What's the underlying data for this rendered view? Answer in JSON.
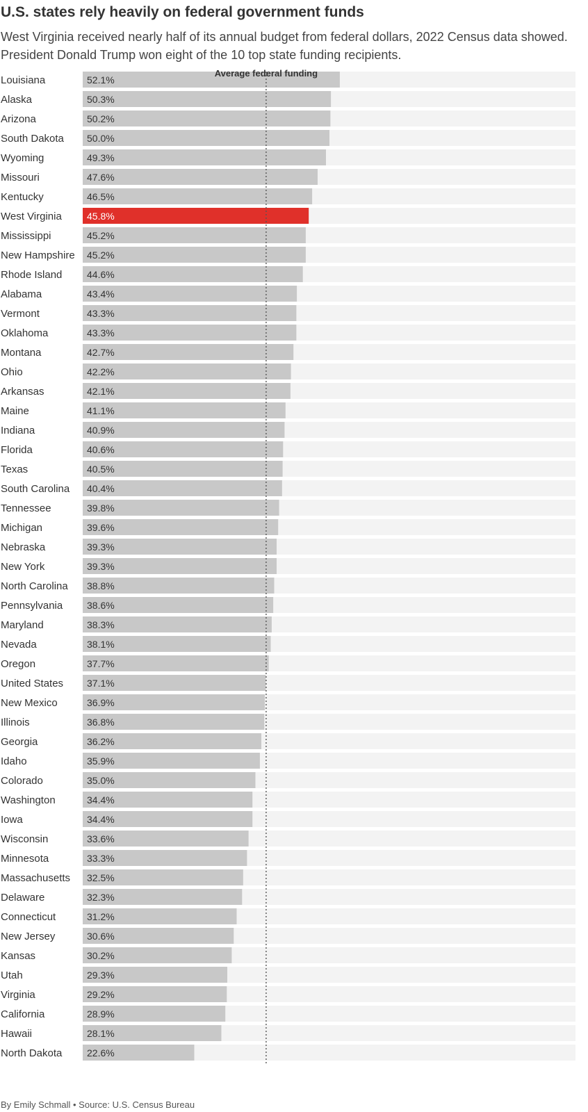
{
  "title": "U.S. states rely heavily on federal government funds",
  "subtitle": "West Virginia received nearly half of its annual budget from federal dollars, 2022 Census data showed. President Donald Trump won eight of the 10 top state funding recipients.",
  "footer": "By Emily Schmall • Source: U.S. Census Bureau",
  "colors": {
    "bar": "#c8c8c8",
    "highlight": "#e0302a",
    "track": "#f3f3f3",
    "average_line": "#555555"
  },
  "chart_data": {
    "type": "bar",
    "orientation": "horizontal",
    "highlight": "West Virginia",
    "average_label": "Average federal funding",
    "average_value": 37.1,
    "xlim": [
      0,
      100
    ],
    "categories": [
      "Louisiana",
      "Alaska",
      "Arizona",
      "South Dakota",
      "Wyoming",
      "Missouri",
      "Kentucky",
      "West Virginia",
      "Mississippi",
      "New Hampshire",
      "Rhode Island",
      "Alabama",
      "Vermont",
      "Oklahoma",
      "Montana",
      "Ohio",
      "Arkansas",
      "Maine",
      "Indiana",
      "Florida",
      "Texas",
      "South Carolina",
      "Tennessee",
      "Michigan",
      "Nebraska",
      "New York",
      "North Carolina",
      "Pennsylvania",
      "Maryland",
      "Nevada",
      "Oregon",
      "United States",
      "New Mexico",
      "Illinois",
      "Georgia",
      "Idaho",
      "Colorado",
      "Washington",
      "Iowa",
      "Wisconsin",
      "Minnesota",
      "Massachusetts",
      "Delaware",
      "Connecticut",
      "New Jersey",
      "Kansas",
      "Utah",
      "Virginia",
      "California",
      "Hawaii",
      "North Dakota"
    ],
    "values": [
      52.1,
      50.3,
      50.2,
      50.0,
      49.3,
      47.6,
      46.5,
      45.8,
      45.2,
      45.2,
      44.6,
      43.4,
      43.3,
      43.3,
      42.7,
      42.2,
      42.1,
      41.1,
      40.9,
      40.6,
      40.5,
      40.4,
      39.8,
      39.6,
      39.3,
      39.3,
      38.8,
      38.6,
      38.3,
      38.1,
      37.7,
      37.1,
      36.9,
      36.8,
      36.2,
      35.9,
      35.0,
      34.4,
      34.4,
      33.6,
      33.3,
      32.5,
      32.3,
      31.2,
      30.6,
      30.2,
      29.3,
      29.2,
      28.9,
      28.1,
      22.6
    ],
    "labels": [
      "52.1%",
      "50.3%",
      "50.2%",
      "50.0%",
      "49.3%",
      "47.6%",
      "46.5%",
      "45.8%",
      "45.2%",
      "45.2%",
      "44.6%",
      "43.4%",
      "43.3%",
      "43.3%",
      "42.7%",
      "42.2%",
      "42.1%",
      "41.1%",
      "40.9%",
      "40.6%",
      "40.5%",
      "40.4%",
      "39.8%",
      "39.6%",
      "39.3%",
      "39.3%",
      "38.8%",
      "38.6%",
      "38.3%",
      "38.1%",
      "37.7%",
      "37.1%",
      "36.9%",
      "36.8%",
      "36.2%",
      "35.9%",
      "35.0%",
      "34.4%",
      "34.4%",
      "33.6%",
      "33.3%",
      "32.5%",
      "32.3%",
      "31.2%",
      "30.6%",
      "30.2%",
      "29.3%",
      "29.2%",
      "28.9%",
      "28.1%",
      "22.6%"
    ]
  }
}
